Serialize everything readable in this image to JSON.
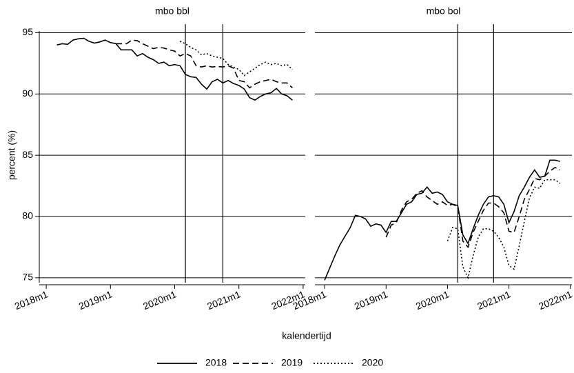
{
  "xlabel": "kalendertijd",
  "ylabel": "percent (%)",
  "legend": [
    {
      "name": "2018",
      "dash": "solid"
    },
    {
      "name": "2019",
      "dash": "dashed"
    },
    {
      "name": "2020",
      "dash": "dotted"
    }
  ],
  "vlines": [
    26,
    33
  ],
  "chart_data": [
    {
      "type": "line",
      "title": "mbo bbl",
      "x": [
        0,
        1,
        2,
        3,
        4,
        5,
        6,
        7,
        8,
        9,
        10,
        11,
        12,
        13,
        14,
        15,
        16,
        17,
        18,
        19,
        20,
        21,
        22,
        23,
        24,
        25,
        26,
        27,
        28,
        29,
        30,
        31,
        32,
        33,
        34,
        35,
        36,
        37,
        38,
        39,
        40,
        41,
        42,
        43,
        44,
        45,
        46
      ],
      "xlim": [
        -1.3,
        48.4
      ],
      "ylim": [
        74.6,
        95.7
      ],
      "xticks": [
        {
          "value": 0,
          "label": "2018m1"
        },
        {
          "value": 12,
          "label": "2019m1"
        },
        {
          "value": 24,
          "label": "2020m1"
        },
        {
          "value": 36,
          "label": "2021m1"
        },
        {
          "value": 48,
          "label": "2022m1"
        }
      ],
      "yticks": [
        75,
        80,
        85,
        90,
        95
      ],
      "ytick_labels": true,
      "grid": true,
      "series": [
        {
          "dash": "solid",
          "color": "#000000",
          "values": [
            null,
            null,
            94.0,
            94.1,
            94.05,
            94.4,
            94.5,
            94.55,
            94.3,
            94.15,
            94.25,
            94.4,
            94.2,
            94.1,
            93.6,
            93.6,
            93.6,
            93.1,
            93.3,
            93.0,
            92.8,
            92.5,
            92.6,
            92.3,
            92.4,
            92.3,
            91.6,
            91.4,
            91.35,
            90.8,
            90.4,
            91.0,
            91.2,
            90.9,
            91.1,
            90.85,
            90.7,
            90.4,
            89.7,
            89.5,
            89.8,
            90.0,
            90.1,
            90.45,
            90.0,
            89.85,
            89.5
          ]
        },
        {
          "dash": "dashed",
          "color": "#000000",
          "values": [
            null,
            null,
            null,
            null,
            null,
            null,
            null,
            null,
            null,
            null,
            null,
            null,
            null,
            94.1,
            94.1,
            94.1,
            94.4,
            94.35,
            94.1,
            93.9,
            93.7,
            93.8,
            93.75,
            93.6,
            93.5,
            93.1,
            93.3,
            93.1,
            92.3,
            92.2,
            92.3,
            92.2,
            92.25,
            92.2,
            92.3,
            92.1,
            91.1,
            91.0,
            90.5,
            90.8,
            91.0,
            91.1,
            91.2,
            91.0,
            90.9,
            90.9,
            90.5
          ]
        },
        {
          "dash": "dotted",
          "color": "#000000",
          "values": [
            null,
            null,
            null,
            null,
            null,
            null,
            null,
            null,
            null,
            null,
            null,
            null,
            null,
            null,
            null,
            null,
            null,
            null,
            null,
            null,
            null,
            null,
            null,
            null,
            null,
            94.3,
            94.1,
            93.8,
            93.6,
            93.2,
            93.3,
            93.1,
            93.0,
            92.9,
            92.4,
            92.2,
            92.0,
            91.5,
            91.8,
            92.1,
            92.4,
            92.6,
            92.4,
            92.5,
            92.3,
            92.4,
            92.0
          ]
        }
      ]
    },
    {
      "type": "line",
      "title": "mbo bol",
      "x": [
        0,
        1,
        2,
        3,
        4,
        5,
        6,
        7,
        8,
        9,
        10,
        11,
        12,
        13,
        14,
        15,
        16,
        17,
        18,
        19,
        20,
        21,
        22,
        23,
        24,
        25,
        26,
        27,
        28,
        29,
        30,
        31,
        32,
        33,
        34,
        35,
        36,
        37,
        38,
        39,
        40,
        41,
        42,
        43,
        44,
        45,
        46
      ],
      "xlim": [
        -1.9,
        48.3
      ],
      "ylim": [
        74.6,
        95.7
      ],
      "xticks": [
        {
          "value": 0,
          "label": "2018m1"
        },
        {
          "value": 12,
          "label": "2019m1"
        },
        {
          "value": 24,
          "label": "2020m1"
        },
        {
          "value": 36,
          "label": "2021m1"
        },
        {
          "value": 48,
          "label": "2022m1"
        }
      ],
      "yticks": [
        75,
        80,
        85,
        90,
        95
      ],
      "ytick_labels": false,
      "grid": true,
      "series": [
        {
          "dash": "solid",
          "color": "#000000",
          "values": [
            74.8,
            75.8,
            76.8,
            77.7,
            78.4,
            79.1,
            80.1,
            80.0,
            79.8,
            79.2,
            79.4,
            79.3,
            78.7,
            79.6,
            79.6,
            80.3,
            81.0,
            81.2,
            81.8,
            81.9,
            82.4,
            81.9,
            82.0,
            81.8,
            81.2,
            81.0,
            80.9,
            78.5,
            77.8,
            79.0,
            80.1,
            81.0,
            81.6,
            81.7,
            81.6,
            81.0,
            79.5,
            80.4,
            81.7,
            82.4,
            83.2,
            83.8,
            83.2,
            83.3,
            84.6,
            84.6,
            84.5
          ]
        },
        {
          "dash": "dashed",
          "color": "#000000",
          "values": [
            null,
            null,
            null,
            null,
            null,
            null,
            null,
            null,
            null,
            null,
            null,
            null,
            78.3,
            79.3,
            79.5,
            80.5,
            81.2,
            81.4,
            81.9,
            82.1,
            81.6,
            81.3,
            81.0,
            81.2,
            80.9,
            81.0,
            80.8,
            78.0,
            77.5,
            78.7,
            79.6,
            80.5,
            81.1,
            81.1,
            80.8,
            80.3,
            78.8,
            78.7,
            80.0,
            81.4,
            82.2,
            83.1,
            83.0,
            83.3,
            83.7,
            84.0,
            83.8
          ]
        },
        {
          "dash": "dotted",
          "color": "#000000",
          "values": [
            null,
            null,
            null,
            null,
            null,
            null,
            null,
            null,
            null,
            null,
            null,
            null,
            null,
            null,
            null,
            null,
            null,
            null,
            null,
            null,
            null,
            null,
            null,
            null,
            78.0,
            79.1,
            79.0,
            75.9,
            75.0,
            76.8,
            78.3,
            79.0,
            79.0,
            78.8,
            78.3,
            77.5,
            76.0,
            75.7,
            77.6,
            79.6,
            81.5,
            82.4,
            82.3,
            83.0,
            83.0,
            83.0,
            82.7
          ]
        }
      ]
    }
  ]
}
